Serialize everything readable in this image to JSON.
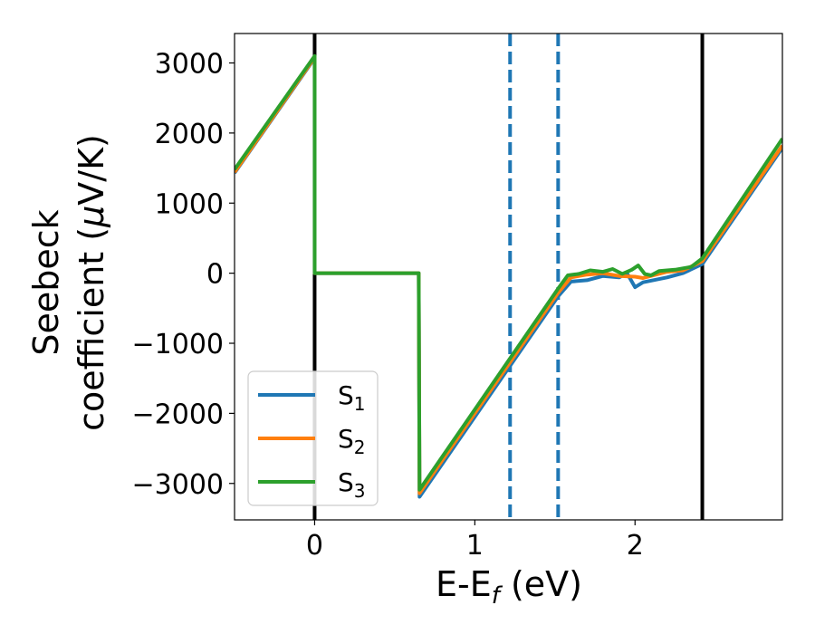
{
  "chart_data": {
    "type": "line",
    "xlabel": {
      "main": "E-E",
      "sub": "f",
      "unit": " (eV)"
    },
    "ylabel": {
      "line1": "Seebeck",
      "line2_text": "coefficient  (",
      "line2_mu": "μ",
      "line2_unit": "V/K)"
    },
    "xlim": [
      -0.5,
      2.92
    ],
    "ylim": [
      -3520,
      3420
    ],
    "xticks": [
      {
        "value": 0,
        "label": "0"
      },
      {
        "value": 1,
        "label": "1"
      },
      {
        "value": 2,
        "label": "2"
      }
    ],
    "yticks": [
      {
        "value": 3000,
        "label": "3000"
      },
      {
        "value": 2000,
        "label": "2000"
      },
      {
        "value": 1000,
        "label": "1000"
      },
      {
        "value": 0,
        "label": "0"
      },
      {
        "value": -1000,
        "label": "−1000"
      },
      {
        "value": -2000,
        "label": "−2000"
      },
      {
        "value": -3000,
        "label": "−3000"
      }
    ],
    "vlines": [
      {
        "x": 0.0,
        "style": "solid",
        "color": "#000000"
      },
      {
        "x": 1.22,
        "style": "dashed",
        "color": "#1f77b4"
      },
      {
        "x": 1.52,
        "style": "dashed",
        "color": "#1f77b4"
      },
      {
        "x": 2.42,
        "style": "solid",
        "color": "#000000"
      }
    ],
    "legend": {
      "position": "lower-left"
    },
    "series": [
      {
        "name": "S",
        "sub": "1",
        "color": "#1f77b4",
        "points": [
          [
            -0.5,
            1430
          ],
          [
            0.0,
            3070
          ],
          [
            0.0,
            0
          ],
          [
            0.65,
            0
          ],
          [
            0.655,
            -3190
          ],
          [
            1.52,
            -330
          ],
          [
            1.6,
            -120
          ],
          [
            1.7,
            -100
          ],
          [
            1.8,
            -40
          ],
          [
            1.9,
            -60
          ],
          [
            1.95,
            0
          ],
          [
            2.0,
            -200
          ],
          [
            2.05,
            -130
          ],
          [
            2.2,
            -60
          ],
          [
            2.3,
            0
          ],
          [
            2.42,
            130
          ],
          [
            2.92,
            1790
          ]
        ]
      },
      {
        "name": "S",
        "sub": "2",
        "color": "#ff7f0e",
        "points": [
          [
            -0.5,
            1440
          ],
          [
            0.0,
            3080
          ],
          [
            0.0,
            0
          ],
          [
            0.65,
            0
          ],
          [
            0.655,
            -3140
          ],
          [
            1.52,
            -280
          ],
          [
            1.6,
            -60
          ],
          [
            1.7,
            -20
          ],
          [
            1.8,
            0
          ],
          [
            1.9,
            -40
          ],
          [
            2.0,
            -50
          ],
          [
            2.05,
            -70
          ],
          [
            2.2,
            20
          ],
          [
            2.3,
            40
          ],
          [
            2.42,
            170
          ],
          [
            2.92,
            1820
          ]
        ]
      },
      {
        "name": "S",
        "sub": "3",
        "color": "#2ca02c",
        "points": [
          [
            -0.5,
            1480
          ],
          [
            0.0,
            3100
          ],
          [
            0.0,
            0
          ],
          [
            0.65,
            0
          ],
          [
            0.655,
            -3090
          ],
          [
            1.52,
            -220
          ],
          [
            1.58,
            -30
          ],
          [
            1.65,
            -10
          ],
          [
            1.72,
            40
          ],
          [
            1.8,
            20
          ],
          [
            1.86,
            60
          ],
          [
            1.92,
            -10
          ],
          [
            1.98,
            50
          ],
          [
            2.02,
            110
          ],
          [
            2.06,
            -10
          ],
          [
            2.1,
            -30
          ],
          [
            2.15,
            30
          ],
          [
            2.25,
            50
          ],
          [
            2.35,
            90
          ],
          [
            2.42,
            210
          ],
          [
            2.92,
            1920
          ]
        ]
      }
    ]
  }
}
